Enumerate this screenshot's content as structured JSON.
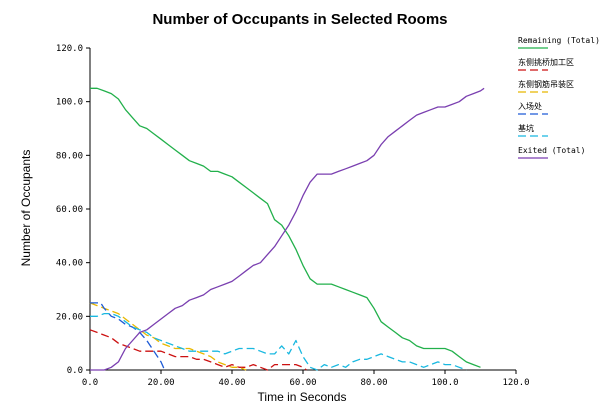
{
  "chart_data": {
    "type": "line",
    "title": "Number of Occupants in Selected Rooms",
    "xlabel": "Time in Seconds",
    "ylabel": "Number of Occupants",
    "xlim": [
      0,
      120
    ],
    "ylim": [
      0,
      120
    ],
    "x_ticks": [
      0,
      20,
      40,
      60,
      80,
      100,
      120
    ],
    "x_tick_labels": [
      "0.0",
      "20.00",
      "40.00",
      "60.00",
      "80.00",
      "100.0",
      "120.0"
    ],
    "y_ticks": [
      0,
      20,
      40,
      60,
      80,
      100,
      120
    ],
    "y_tick_labels": [
      "0.0",
      "20.00",
      "40.00",
      "60.00",
      "80.00",
      "100.0",
      "120.0"
    ],
    "grid": false,
    "legend_position": "top-right",
    "series": [
      {
        "name": "Remaining (Total)",
        "color": "#22b04b",
        "dash": "solid",
        "points": [
          [
            0,
            105
          ],
          [
            2,
            105
          ],
          [
            4,
            104
          ],
          [
            6,
            103
          ],
          [
            8,
            101
          ],
          [
            10,
            97
          ],
          [
            12,
            94
          ],
          [
            14,
            91
          ],
          [
            16,
            90
          ],
          [
            18,
            88
          ],
          [
            20,
            86
          ],
          [
            22,
            84
          ],
          [
            24,
            82
          ],
          [
            26,
            80
          ],
          [
            28,
            78
          ],
          [
            30,
            77
          ],
          [
            32,
            76
          ],
          [
            34,
            74
          ],
          [
            36,
            74
          ],
          [
            38,
            73
          ],
          [
            40,
            72
          ],
          [
            42,
            70
          ],
          [
            44,
            68
          ],
          [
            46,
            66
          ],
          [
            48,
            64
          ],
          [
            50,
            62
          ],
          [
            52,
            56
          ],
          [
            54,
            54
          ],
          [
            56,
            50
          ],
          [
            58,
            45
          ],
          [
            60,
            39
          ],
          [
            62,
            34
          ],
          [
            64,
            32
          ],
          [
            66,
            32
          ],
          [
            68,
            32
          ],
          [
            70,
            31
          ],
          [
            72,
            30
          ],
          [
            74,
            29
          ],
          [
            76,
            28
          ],
          [
            78,
            27
          ],
          [
            80,
            23
          ],
          [
            82,
            18
          ],
          [
            84,
            16
          ],
          [
            86,
            14
          ],
          [
            88,
            12
          ],
          [
            90,
            11
          ],
          [
            92,
            9
          ],
          [
            94,
            8
          ],
          [
            96,
            8
          ],
          [
            98,
            8
          ],
          [
            100,
            8
          ],
          [
            102,
            7
          ],
          [
            104,
            5
          ],
          [
            106,
            3
          ],
          [
            108,
            2
          ],
          [
            110,
            1
          ]
        ]
      },
      {
        "name": "东侧挑桥加工区",
        "color": "#cc1111",
        "dash": "8,4",
        "points": [
          [
            0,
            15
          ],
          [
            2,
            14
          ],
          [
            4,
            13
          ],
          [
            6,
            12
          ],
          [
            8,
            10
          ],
          [
            10,
            9
          ],
          [
            12,
            8
          ],
          [
            14,
            7
          ],
          [
            16,
            7
          ],
          [
            18,
            7
          ],
          [
            20,
            7
          ],
          [
            22,
            6
          ],
          [
            24,
            5
          ],
          [
            26,
            5
          ],
          [
            28,
            5
          ],
          [
            30,
            4
          ],
          [
            32,
            4
          ],
          [
            34,
            3
          ],
          [
            36,
            2
          ],
          [
            38,
            1
          ],
          [
            40,
            2
          ],
          [
            42,
            1
          ],
          [
            44,
            1
          ],
          [
            46,
            2
          ],
          [
            48,
            1
          ],
          [
            50,
            0
          ],
          [
            52,
            2
          ],
          [
            54,
            2
          ],
          [
            56,
            2
          ],
          [
            58,
            2
          ],
          [
            60,
            1
          ],
          [
            61,
            0
          ]
        ]
      },
      {
        "name": "东侧钢筋吊装区",
        "color": "#e8b800",
        "dash": "8,4",
        "points": [
          [
            0,
            25
          ],
          [
            2,
            24
          ],
          [
            4,
            23
          ],
          [
            6,
            22
          ],
          [
            8,
            21
          ],
          [
            10,
            19
          ],
          [
            12,
            17
          ],
          [
            14,
            15
          ],
          [
            16,
            13
          ],
          [
            18,
            12
          ],
          [
            20,
            10
          ],
          [
            22,
            9
          ],
          [
            24,
            8
          ],
          [
            26,
            8
          ],
          [
            28,
            8
          ],
          [
            30,
            7
          ],
          [
            32,
            6
          ],
          [
            34,
            5
          ],
          [
            36,
            3
          ],
          [
            38,
            2
          ],
          [
            40,
            1
          ],
          [
            42,
            1
          ],
          [
            44,
            0
          ]
        ]
      },
      {
        "name": "入场处",
        "color": "#1e5bd6",
        "dash": "8,4",
        "points": [
          [
            0,
            25
          ],
          [
            3,
            25
          ],
          [
            4,
            23
          ],
          [
            6,
            20
          ],
          [
            8,
            19
          ],
          [
            10,
            17
          ],
          [
            12,
            16
          ],
          [
            14,
            14
          ],
          [
            16,
            11
          ],
          [
            18,
            7
          ],
          [
            20,
            3
          ],
          [
            21,
            0
          ]
        ]
      },
      {
        "name": "基坑",
        "color": "#19b8e0",
        "dash": "8,4",
        "points": [
          [
            0,
            20
          ],
          [
            2,
            20
          ],
          [
            4,
            21
          ],
          [
            6,
            21
          ],
          [
            8,
            20
          ],
          [
            10,
            18
          ],
          [
            12,
            16
          ],
          [
            14,
            15
          ],
          [
            16,
            14
          ],
          [
            18,
            12
          ],
          [
            20,
            11
          ],
          [
            22,
            10
          ],
          [
            24,
            9
          ],
          [
            26,
            8
          ],
          [
            28,
            7
          ],
          [
            30,
            7
          ],
          [
            32,
            7
          ],
          [
            34,
            7
          ],
          [
            36,
            7
          ],
          [
            38,
            6
          ],
          [
            40,
            7
          ],
          [
            42,
            8
          ],
          [
            44,
            8
          ],
          [
            46,
            8
          ],
          [
            48,
            7
          ],
          [
            50,
            6
          ],
          [
            52,
            6
          ],
          [
            54,
            9
          ],
          [
            56,
            6
          ],
          [
            58,
            11
          ],
          [
            60,
            5
          ],
          [
            62,
            1
          ],
          [
            64,
            0
          ],
          [
            66,
            2
          ],
          [
            68,
            1
          ],
          [
            70,
            2
          ],
          [
            72,
            1
          ],
          [
            74,
            3
          ],
          [
            76,
            4
          ],
          [
            78,
            4
          ],
          [
            80,
            5
          ],
          [
            82,
            6
          ],
          [
            84,
            5
          ],
          [
            86,
            4
          ],
          [
            88,
            3
          ],
          [
            90,
            3
          ],
          [
            92,
            2
          ],
          [
            94,
            1
          ],
          [
            96,
            2
          ],
          [
            98,
            3
          ],
          [
            100,
            2
          ],
          [
            102,
            2
          ],
          [
            104,
            1
          ],
          [
            106,
            0
          ]
        ]
      },
      {
        "name": "Exited (Total)",
        "color": "#7a3fb0",
        "dash": "solid",
        "points": [
          [
            0,
            0
          ],
          [
            2,
            0
          ],
          [
            4,
            0
          ],
          [
            6,
            1
          ],
          [
            8,
            3
          ],
          [
            10,
            8
          ],
          [
            12,
            11
          ],
          [
            14,
            14
          ],
          [
            16,
            15
          ],
          [
            18,
            17
          ],
          [
            20,
            19
          ],
          [
            22,
            21
          ],
          [
            24,
            23
          ],
          [
            26,
            24
          ],
          [
            28,
            26
          ],
          [
            30,
            27
          ],
          [
            32,
            28
          ],
          [
            34,
            30
          ],
          [
            36,
            31
          ],
          [
            38,
            32
          ],
          [
            40,
            33
          ],
          [
            42,
            35
          ],
          [
            44,
            37
          ],
          [
            46,
            39
          ],
          [
            48,
            40
          ],
          [
            50,
            43
          ],
          [
            52,
            46
          ],
          [
            54,
            50
          ],
          [
            56,
            54
          ],
          [
            58,
            59
          ],
          [
            60,
            65
          ],
          [
            62,
            70
          ],
          [
            64,
            73
          ],
          [
            66,
            73
          ],
          [
            68,
            73
          ],
          [
            70,
            74
          ],
          [
            72,
            75
          ],
          [
            74,
            76
          ],
          [
            76,
            77
          ],
          [
            78,
            78
          ],
          [
            80,
            80
          ],
          [
            82,
            84
          ],
          [
            84,
            87
          ],
          [
            86,
            89
          ],
          [
            88,
            91
          ],
          [
            90,
            93
          ],
          [
            92,
            95
          ],
          [
            94,
            96
          ],
          [
            96,
            97
          ],
          [
            98,
            98
          ],
          [
            100,
            98
          ],
          [
            102,
            99
          ],
          [
            104,
            100
          ],
          [
            106,
            102
          ],
          [
            108,
            103
          ],
          [
            110,
            104
          ],
          [
            111,
            105
          ]
        ]
      }
    ]
  }
}
